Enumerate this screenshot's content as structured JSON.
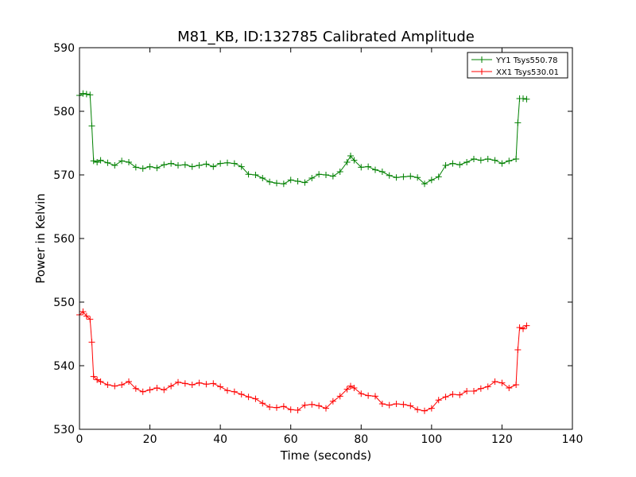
{
  "chart_data": {
    "type": "line",
    "title": "M81_KB, ID:132785 Calibrated Amplitude",
    "xlabel": "Time (seconds)",
    "ylabel": "Power in Kelvin",
    "xlim": [
      0,
      140
    ],
    "ylim": [
      530,
      590
    ],
    "xticks": [
      "0",
      "20",
      "40",
      "60",
      "80",
      "100",
      "120",
      "140"
    ],
    "yticks": [
      "530",
      "540",
      "550",
      "560",
      "570",
      "580",
      "590"
    ],
    "grid": false,
    "legend_position": "top-right",
    "marker": "plus",
    "series": [
      {
        "name": "YY1 Tsys550.78",
        "color": "#008000",
        "x": [
          0,
          1,
          2,
          3,
          3.5,
          4,
          5,
          6,
          8,
          10,
          12,
          14,
          16,
          18,
          20,
          22,
          24,
          26,
          28,
          30,
          32,
          34,
          36,
          38,
          40,
          42,
          44,
          46,
          48,
          50,
          52,
          54,
          56,
          58,
          60,
          62,
          64,
          66,
          68,
          70,
          72,
          74,
          76,
          77,
          78,
          80,
          82,
          84,
          86,
          88,
          90,
          92,
          94,
          96,
          98,
          100,
          102,
          104,
          106,
          108,
          110,
          112,
          114,
          116,
          118,
          120,
          122,
          124,
          124.5,
          125,
          126,
          127
        ],
        "y": [
          582.5,
          582.8,
          582.7,
          582.6,
          577.7,
          572.2,
          572.0,
          572.3,
          571.9,
          571.5,
          572.2,
          572.0,
          571.2,
          571.0,
          571.3,
          571.1,
          571.6,
          571.8,
          571.5,
          571.6,
          571.3,
          571.5,
          571.7,
          571.3,
          571.8,
          571.9,
          571.8,
          571.3,
          570.1,
          570.0,
          569.5,
          568.9,
          568.7,
          568.6,
          569.2,
          569.0,
          568.8,
          569.5,
          570.1,
          570.0,
          569.8,
          570.5,
          572.0,
          573.0,
          572.3,
          571.2,
          571.3,
          570.8,
          570.5,
          569.9,
          569.6,
          569.7,
          569.8,
          569.6,
          568.6,
          569.2,
          569.7,
          571.5,
          571.8,
          571.6,
          572.0,
          572.5,
          572.3,
          572.5,
          572.3,
          571.8,
          572.2,
          572.5,
          578.2,
          582.0,
          582.0,
          581.9
        ]
      },
      {
        "name": "XX1 Tsys530.01",
        "color": "#ff0000",
        "x": [
          0,
          1,
          2,
          3,
          3.5,
          4,
          5,
          6,
          8,
          10,
          12,
          14,
          16,
          18,
          20,
          22,
          24,
          26,
          28,
          30,
          32,
          34,
          36,
          38,
          40,
          42,
          44,
          46,
          48,
          50,
          52,
          54,
          56,
          58,
          60,
          62,
          64,
          66,
          68,
          70,
          72,
          74,
          76,
          77,
          78,
          80,
          82,
          84,
          86,
          88,
          90,
          92,
          94,
          96,
          98,
          100,
          102,
          104,
          106,
          108,
          110,
          112,
          114,
          116,
          118,
          120,
          122,
          124,
          124.5,
          125,
          126,
          127
        ],
        "y": [
          548.0,
          548.5,
          547.8,
          547.3,
          543.7,
          538.3,
          537.8,
          537.5,
          537.0,
          536.8,
          537.0,
          537.5,
          536.4,
          535.9,
          536.2,
          536.5,
          536.2,
          536.8,
          537.4,
          537.2,
          537.0,
          537.3,
          537.1,
          537.2,
          536.7,
          536.1,
          535.9,
          535.5,
          535.1,
          534.8,
          534.1,
          533.5,
          533.4,
          533.6,
          533.1,
          533.0,
          533.8,
          533.9,
          533.7,
          533.3,
          534.4,
          535.2,
          536.3,
          536.8,
          536.5,
          535.6,
          535.3,
          535.2,
          534.0,
          533.8,
          534.0,
          533.9,
          533.7,
          533.1,
          532.9,
          533.3,
          534.6,
          535.1,
          535.5,
          535.4,
          536.0,
          536.0,
          536.4,
          536.7,
          537.5,
          537.3,
          536.5,
          537.0,
          542.5,
          546.0,
          545.8,
          546.3
        ]
      }
    ]
  }
}
